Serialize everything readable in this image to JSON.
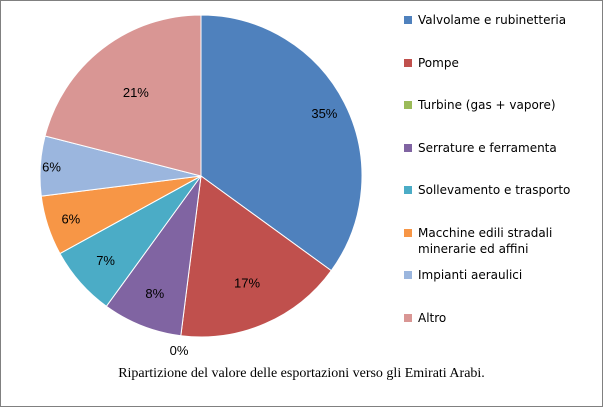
{
  "caption": "Ripartizione del valore delle esportazioni verso gli Emirati Arabi.",
  "chart_data": {
    "type": "pie",
    "categories": [
      "Valvolame e rubinetteria",
      "Pompe",
      "Turbine (gas + vapore)",
      "Serrature e ferramenta",
      "Sollevamento e trasporto",
      "Macchine edili stradali minerarie ed affini",
      "Impianti aeraulici",
      "Altro"
    ],
    "values": [
      35,
      17,
      0,
      8,
      7,
      6,
      6,
      21
    ],
    "labels": [
      "35%",
      "17%",
      "0%",
      "8%",
      "7%",
      "6%",
      "6%",
      "21%"
    ],
    "colors": [
      "#4F81BD",
      "#C0504D",
      "#9BBB59",
      "#8064A2",
      "#4BACC6",
      "#F79646",
      "#9BB6DE",
      "#D99694"
    ],
    "legend_position": "right",
    "title": ""
  },
  "legend": [
    {
      "lines": [
        "Valvolame e rubinetteria"
      ]
    },
    {
      "lines": [
        "Pompe"
      ]
    },
    {
      "lines": [
        "Turbine (gas + vapore)"
      ]
    },
    {
      "lines": [
        "Serrature e ferramenta"
      ]
    },
    {
      "lines": [
        "Sollevamento e trasporto"
      ]
    },
    {
      "lines": [
        "Macchine edili stradali",
        "minerarie ed affini"
      ]
    },
    {
      "lines": [
        "Impianti aeraulici"
      ]
    },
    {
      "lines": [
        "Altro"
      ]
    }
  ]
}
